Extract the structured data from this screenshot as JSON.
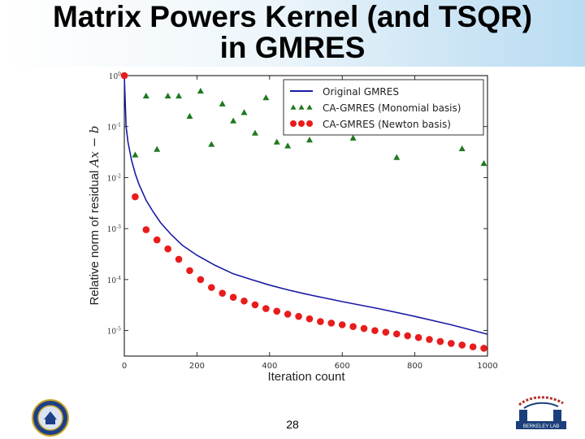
{
  "slide": {
    "title_line1": "Matrix Powers Kernel (and TSQR)",
    "title_line2": "in GMRES",
    "page_number": "28",
    "right_logo_text": "BERKELEY LAB"
  },
  "colors": {
    "original": "#1a1aa6",
    "monomial": "#1e7a1e",
    "newton": "#e81c1c",
    "title_band_end": "#b9dcf2"
  },
  "chart_data": {
    "type": "scatter",
    "xlabel": "Iteration count",
    "ylabel": "Relative norm of residual ",
    "ylabel_math": "Ax − b",
    "xlim": [
      0,
      1000
    ],
    "ylim_log10": [
      -5.5,
      0
    ],
    "y_scale": "log",
    "x_ticks": [
      0,
      200,
      400,
      600,
      800,
      1000
    ],
    "x_tick_labels": [
      "0",
      "200",
      "400",
      "600",
      "800",
      "1000"
    ],
    "y_ticks_log10": [
      0,
      -1,
      -2,
      -3,
      -4,
      -5
    ],
    "y_tick_labels": [
      "10^0",
      "10^-1",
      "10^-2",
      "10^-3",
      "10^-4",
      "10^-5"
    ],
    "grid": false,
    "legend_position": "top-right",
    "series": [
      {
        "name": "Original GMRES",
        "style": "line",
        "x": [
          0,
          5,
          10,
          20,
          30,
          40,
          60,
          80,
          100,
          130,
          160,
          200,
          250,
          300,
          350,
          400,
          450,
          500,
          600,
          700,
          800,
          900,
          1000
        ],
        "y": [
          1,
          0.1,
          0.05,
          0.022,
          0.012,
          0.0075,
          0.0036,
          0.0021,
          0.0013,
          0.00075,
          0.00047,
          0.0003,
          0.00019,
          0.00013,
          0.0001,
          7.8e-05,
          6.3e-05,
          5.2e-05,
          3.7e-05,
          2.7e-05,
          1.9e-05,
          1.3e-05,
          8.5e-06
        ]
      },
      {
        "name": "CA-GMRES (Monomial basis)",
        "style": "triangle",
        "x": [
          30,
          60,
          90,
          120,
          150,
          180,
          210,
          240,
          270,
          300,
          330,
          360,
          390,
          420,
          450,
          480,
          510,
          540,
          570,
          600,
          630,
          750,
          930,
          990
        ],
        "y": [
          0.028,
          0.4,
          0.036,
          0.4,
          0.4,
          0.16,
          0.5,
          0.045,
          0.28,
          0.13,
          0.19,
          0.075,
          0.37,
          0.05,
          0.042,
          0.25,
          0.055,
          0.25,
          0.09,
          0.09,
          0.06,
          0.025,
          0.037,
          0.019
        ]
      },
      {
        "name": "CA-GMRES (Newton basis)",
        "style": "circle",
        "x": [
          0,
          30,
          60,
          90,
          120,
          150,
          180,
          210,
          240,
          270,
          300,
          330,
          360,
          390,
          420,
          450,
          480,
          510,
          540,
          570,
          600,
          630,
          660,
          690,
          720,
          750,
          780,
          810,
          840,
          870,
          900,
          930,
          960,
          990
        ],
        "y": [
          1,
          0.0042,
          0.00095,
          0.0006,
          0.0004,
          0.00025,
          0.00015,
          0.0001,
          7e-05,
          5.4e-05,
          4.5e-05,
          3.8e-05,
          3.2e-05,
          2.7e-05,
          2.4e-05,
          2.1e-05,
          1.9e-05,
          1.7e-05,
          1.5e-05,
          1.4e-05,
          1.3e-05,
          1.2e-05,
          1.1e-05,
          1e-05,
          9.3e-06,
          8.6e-06,
          7.9e-06,
          7.3e-06,
          6.7e-06,
          6.1e-06,
          5.6e-06,
          5.2e-06,
          4.8e-06,
          4.5e-06
        ]
      }
    ]
  }
}
